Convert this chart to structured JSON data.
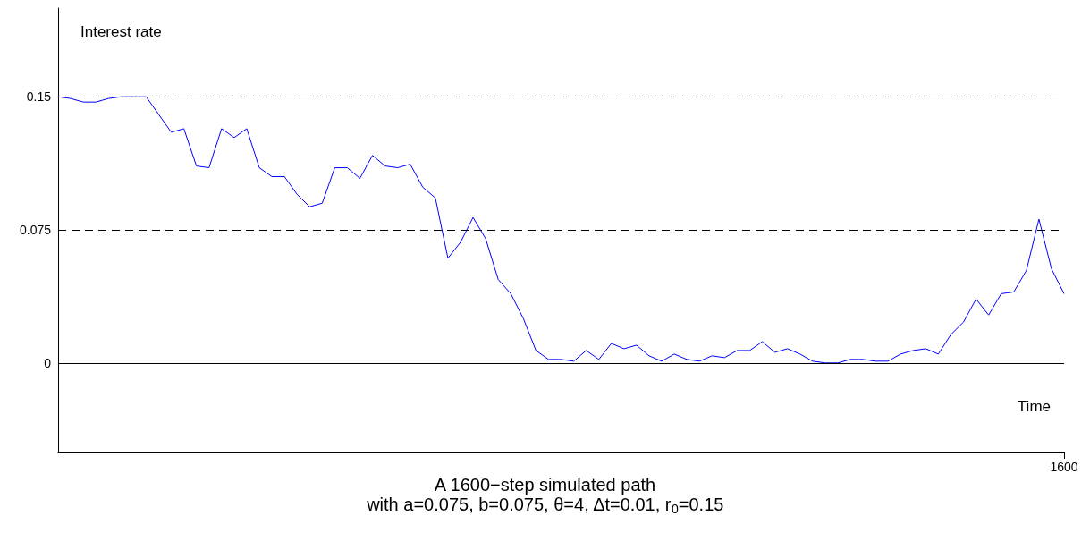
{
  "chart_data": {
    "type": "line",
    "title": "A 1600−step simulated path",
    "subtitle": "with a=0.075, b=0.075, θ=4, Δt=0.01, r$_{0}$=0.15",
    "xlabel": "Time",
    "ylabel": "Interest rate",
    "categories": [
      null,
      null,
      null,
      null,
      null,
      null,
      null,
      null,
      null,
      null,
      null,
      null,
      null,
      null,
      null,
      null,
      null,
      null,
      null,
      null,
      null,
      null,
      null,
      null,
      null,
      null,
      null,
      null,
      null,
      null,
      null,
      null,
      null,
      null,
      null,
      null,
      null,
      null,
      null,
      null,
      null,
      null,
      null,
      null,
      null,
      null,
      null,
      null,
      null,
      null,
      null,
      null,
      null,
      null,
      null,
      null,
      null,
      null,
      null,
      null,
      null,
      null,
      null,
      null,
      null,
      null,
      null,
      null,
      null,
      null,
      null,
      null,
      null,
      null,
      null,
      null,
      null,
      null,
      null,
      null,
      "1600"
    ],
    "values": [
      0.15,
      0.149,
      0.147,
      0.147,
      0.149,
      0.15,
      0.15,
      0.15,
      0.14,
      0.13,
      0.132,
      0.111,
      0.11,
      0.132,
      0.127,
      0.132,
      0.11,
      0.105,
      0.105,
      0.095,
      0.088,
      0.09,
      0.11,
      0.11,
      0.104,
      0.117,
      0.111,
      0.11,
      0.112,
      0.099,
      0.093,
      0.059,
      0.068,
      0.082,
      0.07,
      0.047,
      0.039,
      0.025,
      0.007,
      0.002,
      0.002,
      0.001,
      0.007,
      0.002,
      0.011,
      0.008,
      0.01,
      0.004,
      0.001,
      0.005,
      0.002,
      0.001,
      0.004,
      0.003,
      0.007,
      0.007,
      0.012,
      0.006,
      0.008,
      0.005,
      0.001,
      0,
      0,
      0.002,
      0.002,
      0.001,
      0.001,
      0.005,
      0.007,
      0.008,
      0.005,
      0.016,
      0.023,
      0.036,
      0.027,
      0.039,
      0.04,
      0.052,
      0.081,
      0.053,
      0.039
    ],
    "color": "#0000ff",
    "marker": "none",
    "ylim": [
      -0.05,
      0.2
    ],
    "yticks": [
      0,
      0.075,
      0.15
    ],
    "ref_lines": [
      {
        "axis": "y",
        "value": 0.15,
        "line_style": "dashed",
        "color": "#000000"
      },
      {
        "axis": "y",
        "value": 0.075,
        "line_style": "dashed",
        "color": "#000000"
      },
      {
        "axis": "y",
        "value": 0,
        "line_style": "solid",
        "color": "#000000"
      }
    ]
  }
}
